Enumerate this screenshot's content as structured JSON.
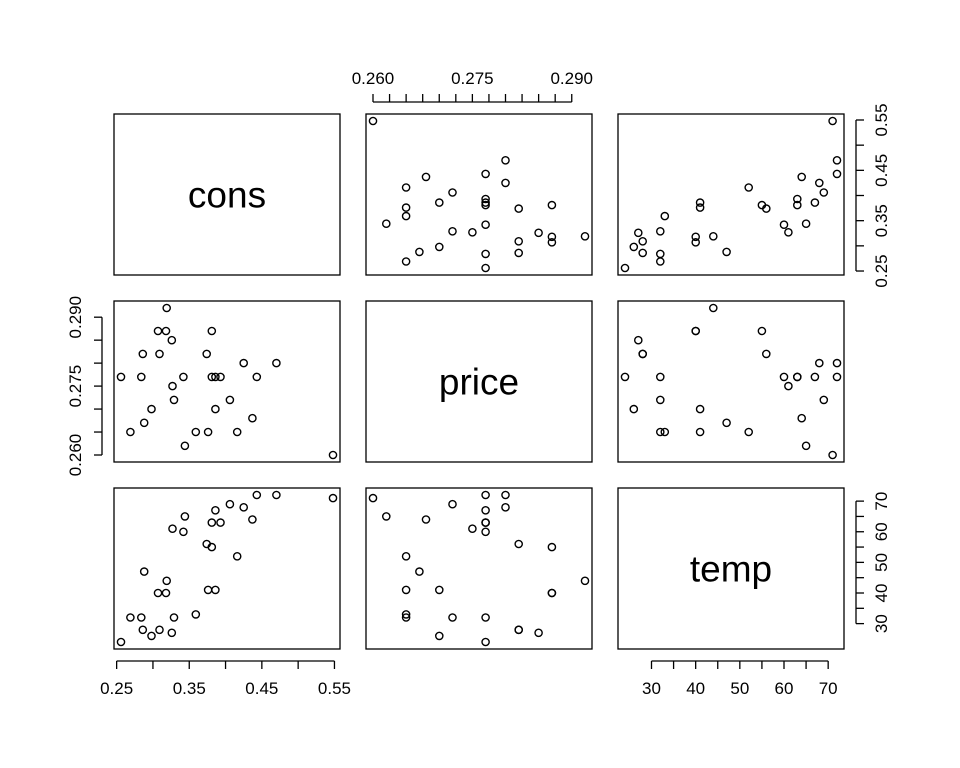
{
  "chart_data": {
    "type": "scatter",
    "kind": "scatterplot-matrix",
    "variables": [
      "cons",
      "price",
      "temp"
    ],
    "ranges": {
      "cons": [
        0.256,
        0.548
      ],
      "price": [
        0.26,
        0.292
      ],
      "temp": [
        24,
        72
      ]
    },
    "ticks": {
      "cons": [
        "0.25",
        "0.35",
        "0.45",
        "0.55"
      ],
      "price": [
        "0.260",
        "0.275",
        "0.290"
      ],
      "temp": [
        "30",
        "40",
        "50",
        "60",
        "70"
      ]
    },
    "tick_values": {
      "cons": [
        0.25,
        0.35,
        0.45,
        0.55
      ],
      "price": [
        0.26,
        0.275,
        0.29
      ],
      "temp": [
        30,
        40,
        50,
        60,
        70
      ]
    },
    "observations": [
      {
        "cons": 0.386,
        "price": 0.27,
        "temp": 41
      },
      {
        "cons": 0.374,
        "price": 0.282,
        "temp": 56
      },
      {
        "cons": 0.393,
        "price": 0.277,
        "temp": 63
      },
      {
        "cons": 0.425,
        "price": 0.28,
        "temp": 68
      },
      {
        "cons": 0.406,
        "price": 0.272,
        "temp": 69
      },
      {
        "cons": 0.344,
        "price": 0.262,
        "temp": 65
      },
      {
        "cons": 0.327,
        "price": 0.275,
        "temp": 61
      },
      {
        "cons": 0.288,
        "price": 0.267,
        "temp": 47
      },
      {
        "cons": 0.269,
        "price": 0.265,
        "temp": 32
      },
      {
        "cons": 0.256,
        "price": 0.277,
        "temp": 24
      },
      {
        "cons": 0.286,
        "price": 0.282,
        "temp": 28
      },
      {
        "cons": 0.298,
        "price": 0.27,
        "temp": 26
      },
      {
        "cons": 0.329,
        "price": 0.272,
        "temp": 32
      },
      {
        "cons": 0.318,
        "price": 0.287,
        "temp": 40
      },
      {
        "cons": 0.381,
        "price": 0.287,
        "temp": 55
      },
      {
        "cons": 0.381,
        "price": 0.277,
        "temp": 63
      },
      {
        "cons": 0.47,
        "price": 0.28,
        "temp": 72
      },
      {
        "cons": 0.443,
        "price": 0.277,
        "temp": 72
      },
      {
        "cons": 0.386,
        "price": 0.277,
        "temp": 67
      },
      {
        "cons": 0.342,
        "price": 0.277,
        "temp": 60
      },
      {
        "cons": 0.319,
        "price": 0.292,
        "temp": 44
      },
      {
        "cons": 0.307,
        "price": 0.287,
        "temp": 40
      },
      {
        "cons": 0.284,
        "price": 0.277,
        "temp": 32
      },
      {
        "cons": 0.326,
        "price": 0.285,
        "temp": 27
      },
      {
        "cons": 0.309,
        "price": 0.282,
        "temp": 28
      },
      {
        "cons": 0.359,
        "price": 0.265,
        "temp": 33
      },
      {
        "cons": 0.376,
        "price": 0.265,
        "temp": 41
      },
      {
        "cons": 0.416,
        "price": 0.265,
        "temp": 52
      },
      {
        "cons": 0.437,
        "price": 0.268,
        "temp": 64
      },
      {
        "cons": 0.548,
        "price": 0.26,
        "temp": 71
      }
    ]
  }
}
